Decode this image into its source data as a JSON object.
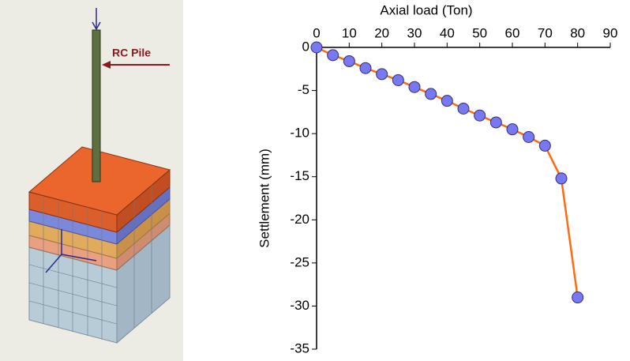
{
  "model_figure": {
    "label": "RC Pile"
  },
  "chart_data": {
    "type": "line",
    "xlabel": "Axial load (Ton)",
    "ylabel": "Settlement (mm)",
    "x": [
      0,
      5,
      10,
      15,
      20,
      25,
      30,
      35,
      40,
      45,
      50,
      55,
      60,
      65,
      70,
      75,
      80
    ],
    "series": [
      {
        "color": "#ff6a10",
        "marker_color": "#7878f0",
        "values": [
          0,
          -0.9,
          -1.6,
          -2.4,
          -3.1,
          -3.8,
          -4.6,
          -5.4,
          -6.2,
          -7.1,
          -7.9,
          -8.7,
          -9.5,
          -10.4,
          -11.4,
          -15.2,
          -29.0
        ]
      }
    ],
    "xlim": [
      0,
      90
    ],
    "xticks": [
      0,
      10,
      20,
      30,
      40,
      50,
      60,
      70,
      80,
      90
    ],
    "ylim": [
      -35,
      0
    ],
    "yticks": [
      0,
      -5,
      -10,
      -15,
      -20,
      -25,
      -30,
      -35
    ]
  }
}
